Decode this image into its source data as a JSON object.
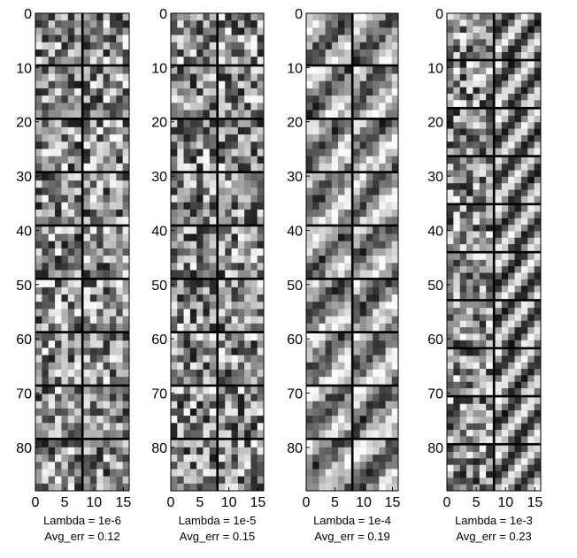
{
  "chart_data": [
    {
      "type": "heatmap",
      "caption_lines": [
        "Lambda = 1e-6",
        "Avg_err = 0.12"
      ],
      "lambda": 1e-06,
      "avg_err": 0.12,
      "xlim": [
        0,
        16
      ],
      "ylim": [
        0,
        88
      ],
      "x_ticks": [
        0,
        5,
        10,
        15
      ],
      "y_ticks": [
        0,
        10,
        20,
        30,
        40,
        50,
        60,
        70,
        80
      ],
      "grid": false,
      "colormap": "gray",
      "tiles_x": 2,
      "tiles_y": 9,
      "seed": 11,
      "pattern": "noise"
    },
    {
      "type": "heatmap",
      "caption_lines": [
        "Lambda = 1e-5",
        "Avg_err = 0.15"
      ],
      "lambda": 1e-05,
      "avg_err": 0.15,
      "xlim": [
        0,
        16
      ],
      "ylim": [
        0,
        88
      ],
      "x_ticks": [
        0,
        5,
        10,
        15
      ],
      "y_ticks": [
        0,
        10,
        20,
        30,
        40,
        50,
        60,
        70,
        80
      ],
      "grid": false,
      "colormap": "gray",
      "tiles_x": 2,
      "tiles_y": 9,
      "seed": 23,
      "pattern": "noise"
    },
    {
      "type": "heatmap",
      "caption_lines": [
        "Lambda = 1e-4",
        "Avg_err = 0.19"
      ],
      "lambda": 0.0001,
      "avg_err": 0.19,
      "xlim": [
        0,
        16
      ],
      "ylim": [
        0,
        88
      ],
      "x_ticks": [
        0,
        5,
        10,
        15
      ],
      "y_ticks": [
        0,
        10,
        20,
        30,
        40,
        50,
        60,
        70,
        80
      ],
      "grid": false,
      "colormap": "gray",
      "tiles_x": 2,
      "tiles_y": 9,
      "seed": 37,
      "pattern": "smooth"
    },
    {
      "type": "heatmap",
      "caption_lines": [
        "Lambda = 1e-3",
        "Avg_err = 0.23"
      ],
      "lambda": 0.001,
      "avg_err": 0.23,
      "xlim": [
        0,
        16
      ],
      "ylim": [
        0,
        88
      ],
      "x_ticks": [
        0,
        5,
        10,
        15
      ],
      "y_ticks": [
        0,
        10,
        20,
        30,
        40,
        50,
        60,
        70,
        80
      ],
      "grid": false,
      "colormap": "gray",
      "tiles_x": 2,
      "tiles_y": 10,
      "seed": 51,
      "pattern": "stripes"
    }
  ],
  "colors": {
    "background": "#ffffff",
    "separator": "#000000",
    "axis_frame": "#000000",
    "text": "#000000"
  }
}
